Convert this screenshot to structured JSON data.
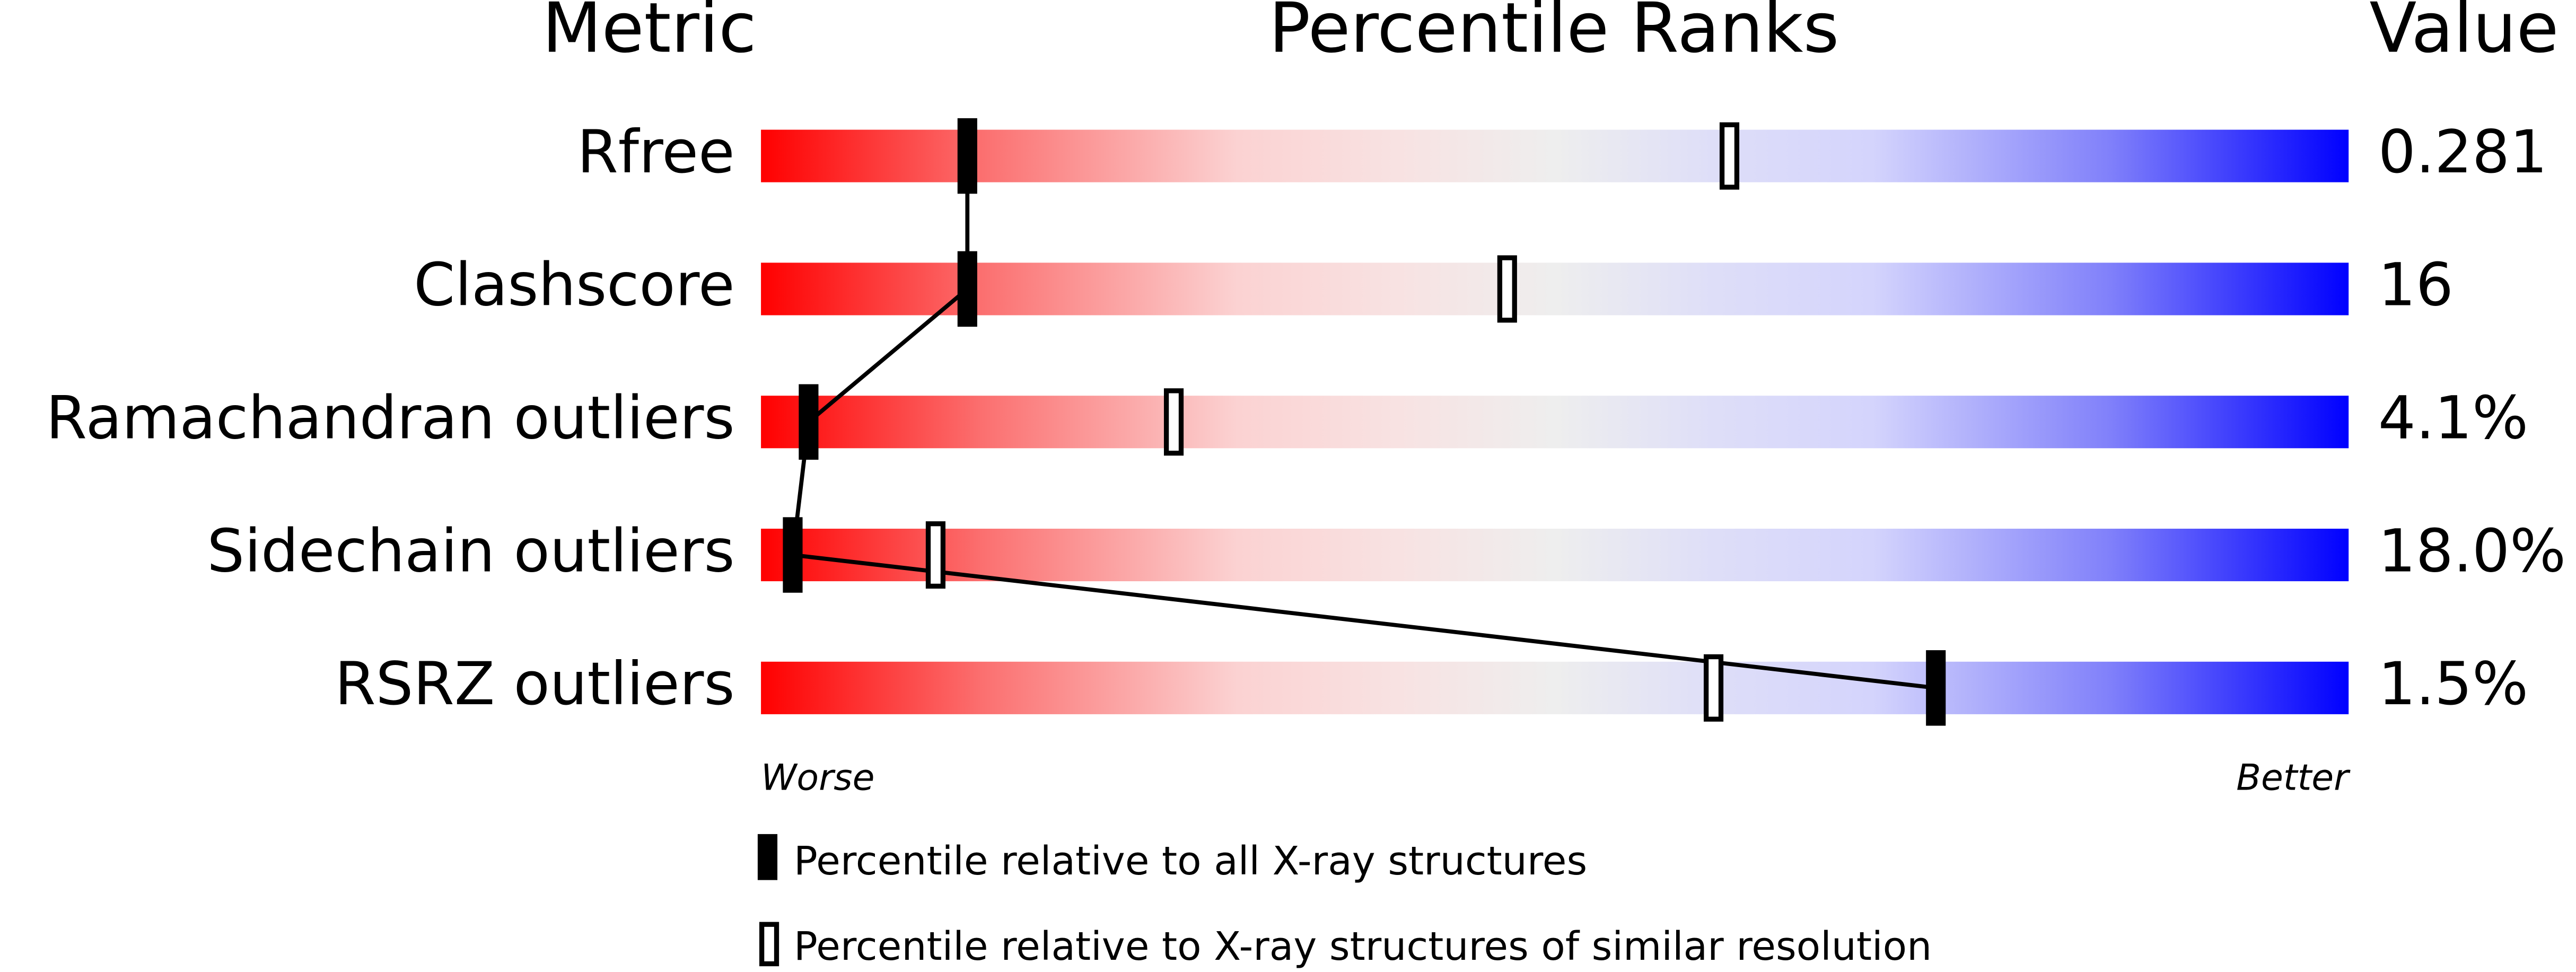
{
  "chart_data": {
    "type": "percentile",
    "headers": [
      "Metric",
      "Percentile Ranks",
      "Value"
    ],
    "categories": [
      "Rfree",
      "Clashscore",
      "Ramachandran outliers",
      "Sidechain outliers",
      "RSRZ outliers"
    ],
    "metric_values": [
      "0.281",
      "16",
      "4.1%",
      "18.0%",
      "1.5%"
    ],
    "x_start_label": "Worse",
    "x_end_label": "Better",
    "xlim": [
      0,
      100
    ],
    "series": [
      {
        "name": "Percentile relative to all X-ray structures",
        "color": "#000000",
        "values": [
          13,
          13,
          3,
          2,
          74
        ]
      },
      {
        "name": "Percentile relative to X-ray structures of similar resolution",
        "color": "#ffffff",
        "values": [
          61,
          47,
          26,
          11,
          60
        ]
      }
    ]
  }
}
